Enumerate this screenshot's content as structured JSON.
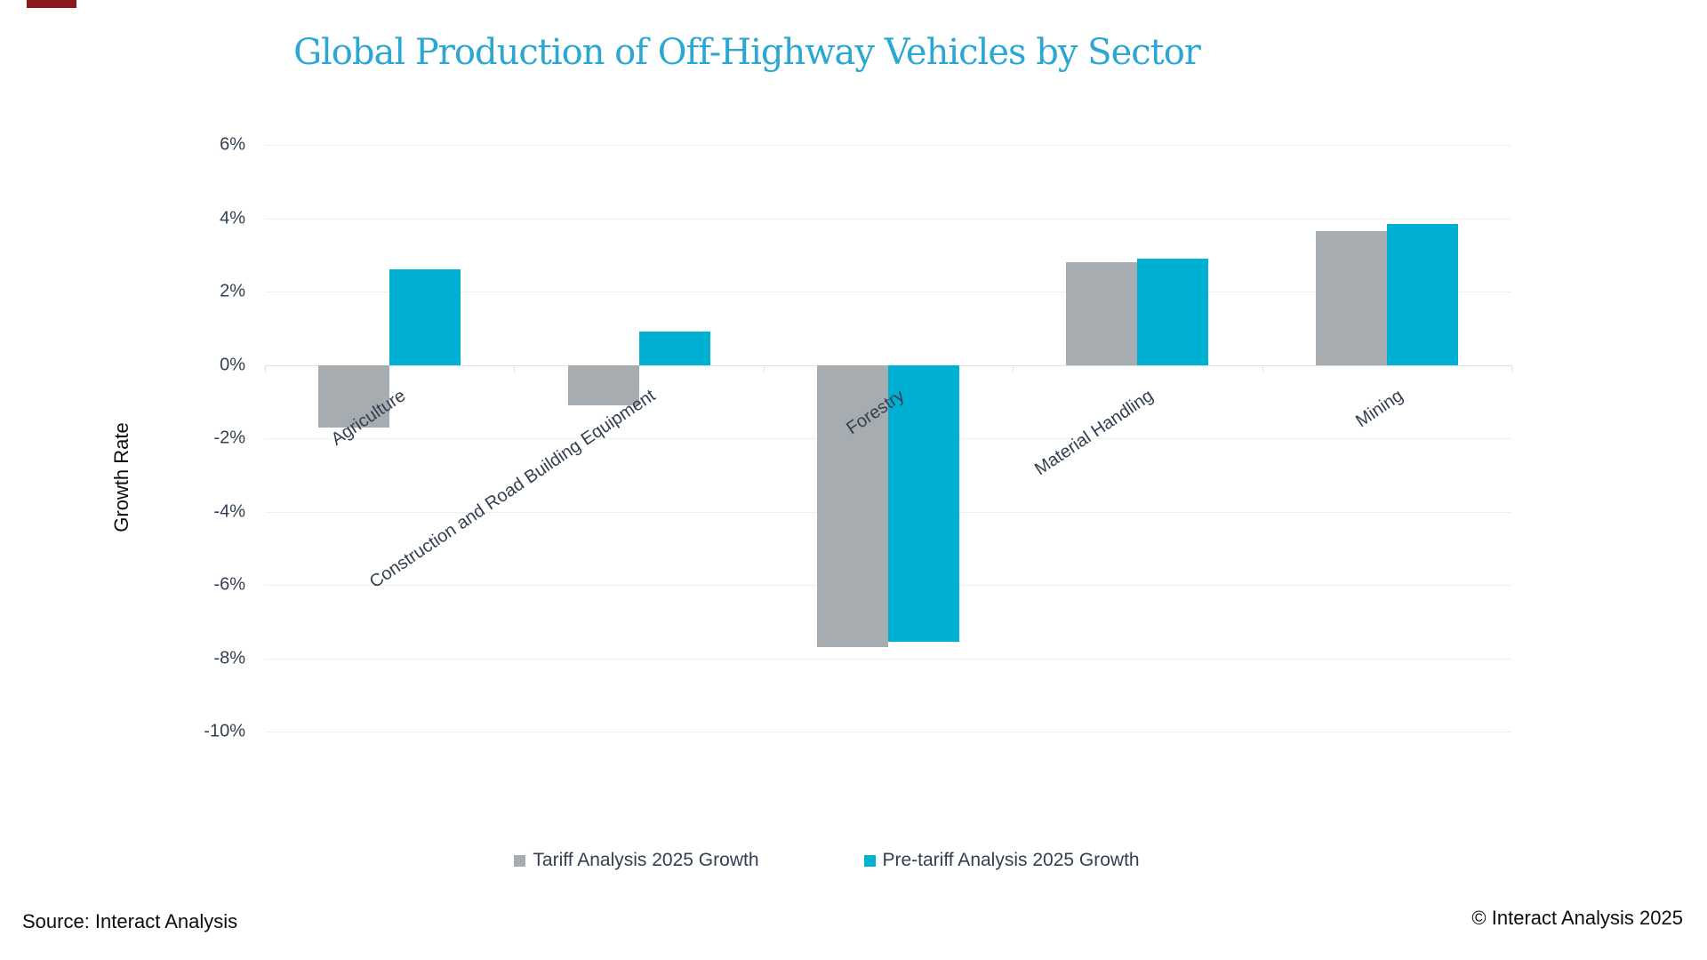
{
  "page": {
    "background": "#ffffff",
    "title_color": "#2ba7d3",
    "axis_text_color": "#333f50",
    "gridline_color": "#efefef",
    "zero_line_color": "#e1e1e1",
    "brand_mark_color": "#8a1a1c"
  },
  "chart_data": {
    "type": "bar",
    "title": "Global Production of Off-Highway Vehicles by Sector",
    "ylabel": "Growth Rate",
    "xlabel": "",
    "categories": [
      "Agriculture",
      "Construction and Road Building Equipment",
      "Forestry",
      "Material Handling",
      "Mining"
    ],
    "series": [
      {
        "name": "Tariff Analysis 2025 Growth",
        "color": "#a6acb0",
        "values": [
          -1.7,
          -1.1,
          -7.7,
          2.8,
          3.65
        ]
      },
      {
        "name": "Pre-tariff Analysis 2025 Growth",
        "color": "#00b0d2",
        "values": [
          2.6,
          0.9,
          -7.55,
          2.9,
          3.85
        ]
      }
    ],
    "y_ticks": [
      "6%",
      "4%",
      "2%",
      "0%",
      "-2%",
      "-4%",
      "-6%",
      "-8%",
      "-10%"
    ],
    "ylim": [
      -10,
      6
    ],
    "y_tick_step": 2,
    "grid": true,
    "legend_position": "bottom"
  },
  "footer": {
    "source": "Source: Interact Analysis",
    "copyright": "© Interact Analysis 2025"
  }
}
